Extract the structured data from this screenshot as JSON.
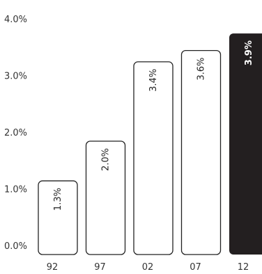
{
  "chart_data": {
    "type": "bar",
    "title": "",
    "xlabel": "",
    "ylabel": "",
    "categories": [
      "92",
      "97",
      "02",
      "07",
      "12"
    ],
    "values": [
      1.3,
      2.0,
      3.4,
      3.6,
      3.9
    ],
    "value_labels": [
      "1.3%",
      "2.0%",
      "3.4%",
      "3.6%",
      "3.9%"
    ],
    "yticks": [
      0,
      1,
      2,
      3,
      4
    ],
    "ytick_labels": [
      "0.0%",
      "1.0%",
      "2.0%",
      "3.0%",
      "4.0%"
    ],
    "ylim": [
      0,
      4
    ],
    "grid": false,
    "legend": "none",
    "highlight_index": 4,
    "colors": {
      "bar_fill": "#ffffff",
      "bar_stroke": "#222222",
      "highlight_fill": "#231f20",
      "highlight_text": "#ffffff",
      "label_text": "#222222",
      "axis_text": "#333333"
    }
  }
}
